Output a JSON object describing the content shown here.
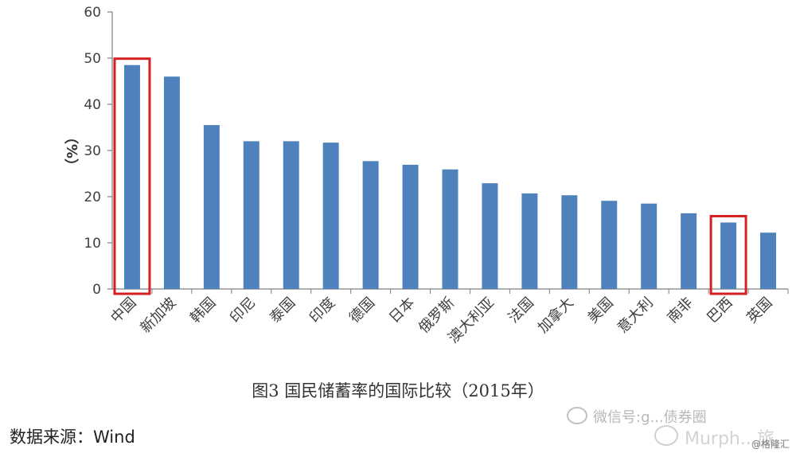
{
  "chart_data": {
    "type": "bar",
    "title": "图3 国民储蓄率的国际比较（2015年）",
    "xlabel": "",
    "ylabel": "（%）",
    "ylim": [
      0,
      60
    ],
    "yticks": [
      0,
      10,
      20,
      30,
      40,
      50,
      60
    ],
    "grid": false,
    "categories": [
      "中国",
      "新加坡",
      "韩国",
      "印尼",
      "泰国",
      "印度",
      "德国",
      "日本",
      "俄罗斯",
      "澳大利亚",
      "法国",
      "加拿大",
      "美国",
      "意大利",
      "南非",
      "巴西",
      "英国"
    ],
    "values": [
      48.5,
      46,
      35.5,
      32,
      32,
      31.7,
      27.7,
      26.9,
      25.9,
      22.9,
      20.7,
      20.3,
      19.1,
      18.5,
      16.4,
      14.4,
      12.2
    ],
    "highlighted": [
      "中国",
      "巴西"
    ],
    "bar_color": "#4f81bd",
    "highlight_color": "#d42020"
  },
  "caption": "图3 国民储蓄率的国际比较（2015年）",
  "source": "数据来源：Wind",
  "watermarks": [
    "微信号:g...债券圈",
    "Murph...旅",
    "@格隆汇"
  ]
}
